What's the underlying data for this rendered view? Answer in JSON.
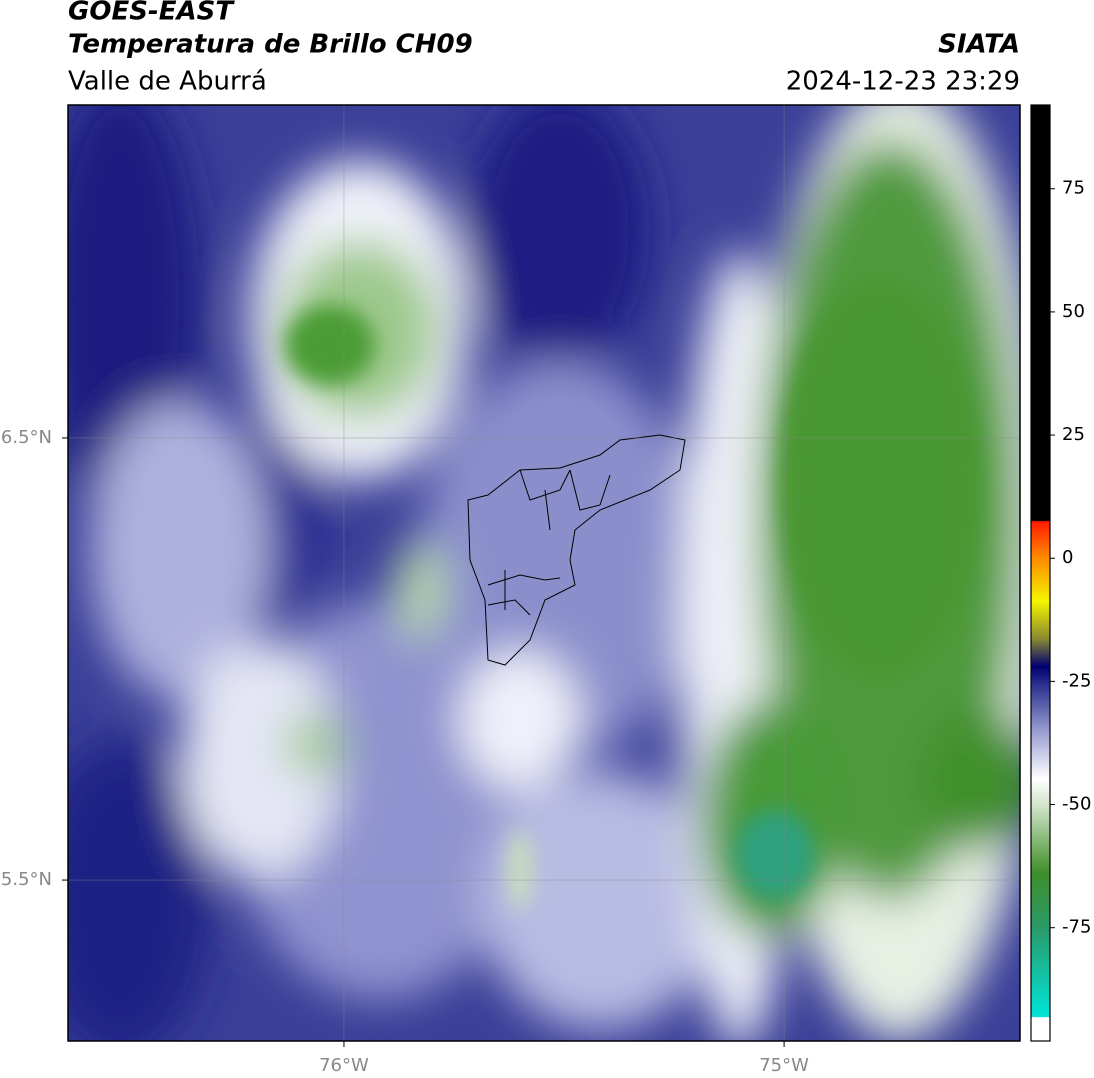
{
  "header": {
    "satellite": "GOES-EAST",
    "product": "Temperatura de Brillo CH09",
    "region": "Valle de Aburrá",
    "agency": "SIATA",
    "datetime": "2024-12-23 23:29"
  },
  "map": {
    "xlim": [
      -76.627,
      -74.464
    ],
    "ylim": [
      5.136,
      7.253
    ],
    "xticks": [
      {
        "value": -76,
        "label": "76°W"
      },
      {
        "value": -75,
        "label": "75°W"
      }
    ],
    "yticks": [
      {
        "value": 6.5,
        "label": "6.5°N"
      },
      {
        "value": 5.5,
        "label": "5.5°N"
      }
    ],
    "grid": true
  },
  "colorbar": {
    "lim": [
      -98,
      92
    ],
    "ticks": [
      75,
      50,
      25,
      0,
      -25,
      -50,
      -75
    ]
  }
}
